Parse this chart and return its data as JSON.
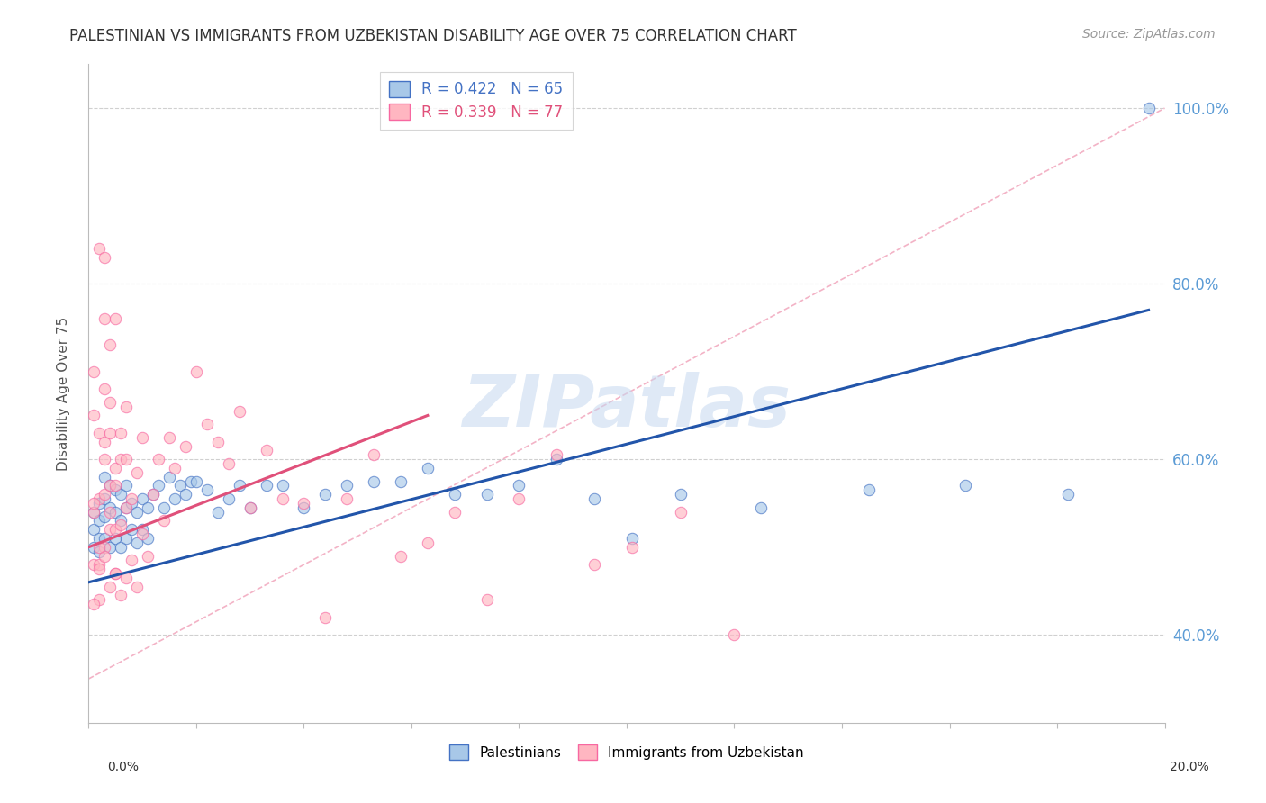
{
  "title": "PALESTINIAN VS IMMIGRANTS FROM UZBEKISTAN DISABILITY AGE OVER 75 CORRELATION CHART",
  "source": "Source: ZipAtlas.com",
  "ylabel": "Disability Age Over 75",
  "watermark": "ZIPatlas",
  "legend_top": [
    {
      "label": "R = 0.422   N = 65",
      "color": "#4472c4"
    },
    {
      "label": "R = 0.339   N = 77",
      "color": "#f768a1"
    }
  ],
  "legend_bottom": [
    {
      "label": "Palestinians",
      "facecolor": "#a8c8e8",
      "edgecolor": "#4472c4"
    },
    {
      "label": "Immigrants from Uzbekistan",
      "facecolor": "#ffb6c1",
      "edgecolor": "#f768a1"
    }
  ],
  "blue_scatter_x": [
    0.001,
    0.001,
    0.001,
    0.002,
    0.002,
    0.002,
    0.002,
    0.003,
    0.003,
    0.003,
    0.003,
    0.004,
    0.004,
    0.004,
    0.005,
    0.005,
    0.005,
    0.006,
    0.006,
    0.006,
    0.007,
    0.007,
    0.007,
    0.008,
    0.008,
    0.009,
    0.009,
    0.01,
    0.01,
    0.011,
    0.011,
    0.012,
    0.013,
    0.014,
    0.015,
    0.016,
    0.017,
    0.018,
    0.019,
    0.02,
    0.022,
    0.024,
    0.026,
    0.028,
    0.03,
    0.033,
    0.036,
    0.04,
    0.044,
    0.048,
    0.053,
    0.058,
    0.063,
    0.068,
    0.074,
    0.08,
    0.087,
    0.094,
    0.101,
    0.11,
    0.125,
    0.145,
    0.163,
    0.182,
    0.197
  ],
  "blue_scatter_y": [
    0.5,
    0.52,
    0.54,
    0.51,
    0.53,
    0.55,
    0.495,
    0.51,
    0.535,
    0.555,
    0.58,
    0.5,
    0.545,
    0.57,
    0.51,
    0.54,
    0.565,
    0.5,
    0.53,
    0.56,
    0.51,
    0.545,
    0.57,
    0.52,
    0.55,
    0.505,
    0.54,
    0.52,
    0.555,
    0.51,
    0.545,
    0.56,
    0.57,
    0.545,
    0.58,
    0.555,
    0.57,
    0.56,
    0.575,
    0.575,
    0.565,
    0.54,
    0.555,
    0.57,
    0.545,
    0.57,
    0.57,
    0.545,
    0.56,
    0.57,
    0.575,
    0.575,
    0.59,
    0.56,
    0.56,
    0.57,
    0.6,
    0.555,
    0.51,
    0.56,
    0.545,
    0.565,
    0.57,
    0.56,
    1.0
  ],
  "pink_scatter_x": [
    0.001,
    0.001,
    0.001,
    0.002,
    0.002,
    0.002,
    0.002,
    0.003,
    0.003,
    0.003,
    0.003,
    0.003,
    0.004,
    0.004,
    0.004,
    0.004,
    0.004,
    0.005,
    0.005,
    0.005,
    0.005,
    0.006,
    0.006,
    0.006,
    0.007,
    0.007,
    0.007,
    0.008,
    0.008,
    0.009,
    0.009,
    0.01,
    0.01,
    0.011,
    0.012,
    0.013,
    0.014,
    0.015,
    0.016,
    0.018,
    0.02,
    0.022,
    0.024,
    0.026,
    0.028,
    0.03,
    0.033,
    0.036,
    0.04,
    0.044,
    0.048,
    0.053,
    0.058,
    0.063,
    0.068,
    0.074,
    0.08,
    0.087,
    0.094,
    0.101,
    0.11,
    0.12,
    0.002,
    0.003,
    0.003,
    0.003,
    0.004,
    0.004,
    0.005,
    0.005,
    0.006,
    0.001,
    0.001,
    0.001,
    0.002,
    0.002,
    0.007
  ],
  "pink_scatter_y": [
    0.54,
    0.7,
    0.48,
    0.555,
    0.63,
    0.48,
    0.44,
    0.5,
    0.56,
    0.6,
    0.49,
    0.62,
    0.455,
    0.52,
    0.57,
    0.54,
    0.63,
    0.47,
    0.52,
    0.59,
    0.47,
    0.445,
    0.525,
    0.6,
    0.465,
    0.545,
    0.6,
    0.485,
    0.555,
    0.455,
    0.585,
    0.515,
    0.625,
    0.49,
    0.56,
    0.6,
    0.53,
    0.625,
    0.59,
    0.615,
    0.7,
    0.64,
    0.62,
    0.595,
    0.655,
    0.545,
    0.61,
    0.555,
    0.55,
    0.42,
    0.555,
    0.605,
    0.49,
    0.505,
    0.54,
    0.44,
    0.555,
    0.605,
    0.48,
    0.5,
    0.54,
    0.4,
    0.84,
    0.83,
    0.76,
    0.68,
    0.73,
    0.665,
    0.76,
    0.57,
    0.63,
    0.55,
    0.65,
    0.435,
    0.475,
    0.5,
    0.66
  ],
  "blue_line_x": [
    0.0,
    0.197
  ],
  "blue_line_y": [
    0.46,
    0.77
  ],
  "pink_line_x": [
    0.0,
    0.063
  ],
  "pink_line_y": [
    0.5,
    0.65
  ],
  "diag_line_x": [
    0.0,
    0.2
  ],
  "diag_line_y": [
    0.35,
    1.0
  ],
  "xmin": 0.0,
  "xmax": 0.2,
  "ymin": 0.3,
  "ymax": 1.05,
  "ytick_positions": [
    0.4,
    0.6,
    0.8,
    1.0
  ],
  "ytick_labels": [
    "40.0%",
    "60.0%",
    "80.0%",
    "100.0%"
  ],
  "title_fontsize": 12,
  "source_fontsize": 10,
  "axis_tick_color": "#5b9bd5",
  "scatter_alpha": 0.65,
  "scatter_size": 80,
  "bg_color": "#ffffff",
  "grid_color": "#d0d0d0"
}
